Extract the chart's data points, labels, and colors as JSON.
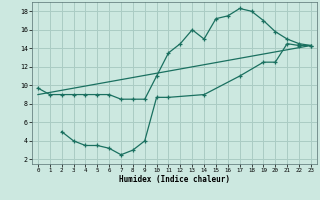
{
  "xlabel": "Humidex (Indice chaleur)",
  "bg_color": "#cce8e0",
  "grid_color": "#aaccc4",
  "line_color": "#1a7060",
  "xlim": [
    -0.5,
    23.5
  ],
  "ylim": [
    1.5,
    19
  ],
  "xticks": [
    0,
    1,
    2,
    3,
    4,
    5,
    6,
    7,
    8,
    9,
    10,
    11,
    12,
    13,
    14,
    15,
    16,
    17,
    18,
    19,
    20,
    21,
    22,
    23
  ],
  "yticks": [
    2,
    4,
    6,
    8,
    10,
    12,
    14,
    16,
    18
  ],
  "line1_x": [
    0,
    1,
    2,
    3,
    4,
    5,
    6,
    7,
    8,
    9,
    10,
    11,
    12,
    13,
    14,
    15,
    16,
    17,
    18,
    19,
    20,
    21,
    22,
    23
  ],
  "line1_y": [
    9.7,
    9.0,
    9.0,
    9.0,
    9.0,
    9.0,
    9.0,
    8.5,
    8.5,
    8.5,
    11.0,
    13.5,
    14.5,
    16.0,
    15.0,
    17.2,
    17.5,
    18.3,
    18.0,
    17.0,
    15.8,
    15.0,
    14.5,
    14.3
  ],
  "line2_x": [
    2,
    3,
    4,
    5,
    6,
    7,
    8,
    9,
    10,
    11,
    14,
    17,
    19,
    20,
    21,
    22,
    23
  ],
  "line2_y": [
    5.0,
    4.0,
    3.5,
    3.5,
    3.2,
    2.5,
    3.0,
    4.0,
    8.7,
    8.7,
    9.0,
    11.0,
    12.5,
    12.5,
    14.5,
    14.3,
    14.3
  ],
  "line3_x": [
    0,
    23
  ],
  "line3_y": [
    9.0,
    14.3
  ]
}
